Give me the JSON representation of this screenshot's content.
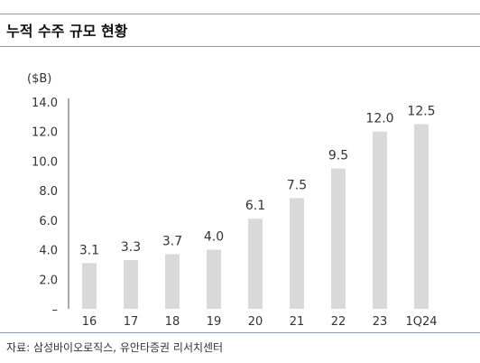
{
  "header": {
    "title": "누적 수주 규모 현황"
  },
  "footer": {
    "source": "자료: 삼성바이오로직스, 유안타증권 리서치센터"
  },
  "colors": {
    "bar": "#d9d9d9",
    "rule": "#8a9bb0",
    "axis": "#555555"
  },
  "chart_data": {
    "type": "bar",
    "unit_label": "($B)",
    "categories": [
      "16",
      "17",
      "18",
      "19",
      "20",
      "21",
      "22",
      "23",
      "1Q24"
    ],
    "values": [
      3.1,
      3.3,
      3.7,
      4.0,
      6.1,
      7.5,
      9.5,
      12.0,
      12.5
    ],
    "value_labels": [
      "3.1",
      "3.3",
      "3.7",
      "4.0",
      "6.1",
      "7.5",
      "9.5",
      "12.0",
      "12.5"
    ],
    "ylim": [
      0,
      14
    ],
    "yticks": [
      0,
      2,
      4,
      6,
      8,
      10,
      12,
      14
    ],
    "ytick_labels": [
      "–",
      "2.0",
      "4.0",
      "6.0",
      "8.0",
      "10.0",
      "12.0",
      "14.0"
    ],
    "grid": false,
    "legend": "none"
  }
}
